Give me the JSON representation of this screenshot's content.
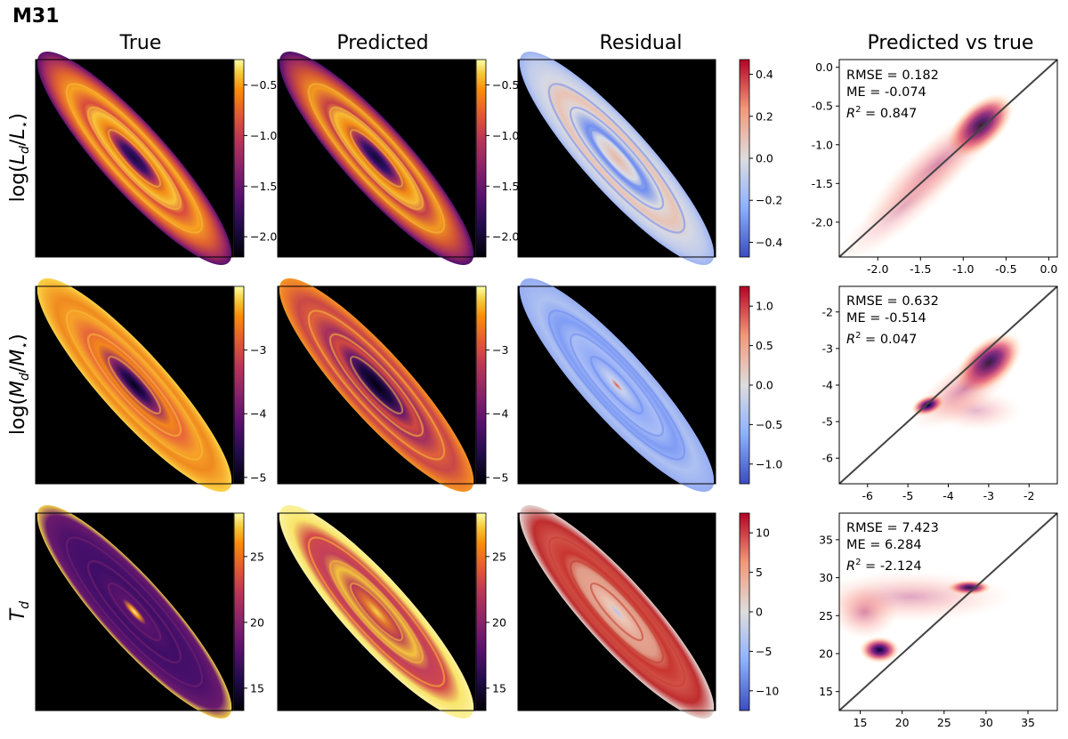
{
  "figure_title": "M31",
  "columns": [
    "True",
    "Predicted",
    "Residual",
    "Predicted vs true"
  ],
  "rows": [
    {
      "label": "log(L_d/L_⋆)",
      "label_parts": {
        "pre": "log(",
        "v1": "L",
        "s1": "d",
        "mid": "/",
        "v2": "L",
        "s2": "⋆",
        "post": ")"
      },
      "true_colorbar": {
        "ticks": [
          "−0.5",
          "−1.0",
          "−1.5",
          "−2.0"
        ],
        "range": [
          -2.2,
          -0.25
        ]
      },
      "pred_colorbar": {
        "ticks": [
          "−0.5",
          "−1.0",
          "−1.5",
          "−2.0"
        ],
        "range": [
          -2.2,
          -0.25
        ]
      },
      "resid_colorbar": {
        "ticks": [
          "0.4",
          "0.2",
          "0.0",
          "−0.2",
          "−0.4"
        ],
        "range": [
          -0.47,
          0.47
        ]
      }
    },
    {
      "label": "log(M_d/M_⋆)",
      "label_parts": {
        "pre": "log(",
        "v1": "M",
        "s1": "d",
        "mid": "/",
        "v2": "M",
        "s2": "⋆",
        "post": ")"
      },
      "true_colorbar": {
        "ticks": [
          "−3",
          "−4",
          "−5"
        ],
        "range": [
          -5.1,
          -2.0
        ]
      },
      "pred_colorbar": {
        "ticks": [
          "−3",
          "−4",
          "−5"
        ],
        "range": [
          -5.1,
          -2.0
        ]
      },
      "resid_colorbar": {
        "ticks": [
          "1.0",
          "0.5",
          "0.0",
          "−0.5",
          "−1.0"
        ],
        "range": [
          -1.25,
          1.25
        ]
      }
    },
    {
      "label": "T_d",
      "label_parts": {
        "pre": "",
        "v1": "T",
        "s1": "d",
        "mid": "",
        "v2": "",
        "s2": "",
        "post": ""
      },
      "true_colorbar": {
        "ticks": [
          "25",
          "20",
          "15"
        ],
        "range": [
          13.3,
          28.3
        ]
      },
      "pred_colorbar": {
        "ticks": [
          "25",
          "20",
          "15"
        ],
        "range": [
          13.3,
          28.3
        ]
      },
      "resid_colorbar": {
        "ticks": [
          "10",
          "5",
          "0",
          "−5",
          "−10"
        ],
        "range": [
          -12.5,
          12.5
        ]
      }
    }
  ],
  "chart_data": [
    {
      "type": "scatter",
      "subtype": "density (predicted vs true) with identity line",
      "title": "Predicted vs true",
      "stats": {
        "RMSE": "RMSE = 0.182",
        "ME": "ME = -0.074",
        "R2_value": " = 0.847"
      },
      "xlim": [
        -2.45,
        0.1
      ],
      "ylim": [
        -2.45,
        0.1
      ],
      "xticks": [
        "-2.0",
        "-1.5",
        "-1.0",
        "-0.5",
        "0.0"
      ],
      "xtick_values": [
        -2.0,
        -1.5,
        -1.0,
        -0.5,
        0.0
      ],
      "yticks": [
        "0.0",
        "-0.5",
        "-1.0",
        "-1.5",
        "-2.0"
      ],
      "ytick_values": [
        0.0,
        -0.5,
        -1.0,
        -1.5,
        -2.0
      ],
      "density_blobs": [
        {
          "x": -0.8,
          "y": -0.75,
          "sx": 0.22,
          "sy": 0.13,
          "rot": -43,
          "peak": 0.95
        },
        {
          "x": -1.3,
          "y": -1.25,
          "sx": 0.5,
          "sy": 0.14,
          "rot": -40,
          "peak": 0.45
        },
        {
          "x": -1.7,
          "y": -1.8,
          "sx": 0.45,
          "sy": 0.12,
          "rot": -40,
          "peak": 0.15
        }
      ]
    },
    {
      "type": "scatter",
      "subtype": "density (predicted vs true) with identity line",
      "title": "Predicted vs true",
      "stats": {
        "RMSE": "RMSE = 0.632",
        "ME": "ME = -0.514",
        "R2_value": " = 0.047"
      },
      "xlim": [
        -6.7,
        -1.3
      ],
      "ylim": [
        -6.7,
        -1.3
      ],
      "xticks": [
        "-6",
        "-5",
        "-4",
        "-3",
        "-2"
      ],
      "xtick_values": [
        -6,
        -5,
        -4,
        -3,
        -2
      ],
      "yticks": [
        "-2",
        "-3",
        "-4",
        "-5",
        "-6"
      ],
      "ytick_values": [
        -2,
        -3,
        -4,
        -5,
        -6
      ],
      "density_blobs": [
        {
          "x": -3.0,
          "y": -3.4,
          "sx": 0.45,
          "sy": 0.28,
          "rot": -40,
          "peak": 0.95
        },
        {
          "x": -3.6,
          "y": -4.1,
          "sx": 0.7,
          "sy": 0.3,
          "rot": -35,
          "peak": 0.45
        },
        {
          "x": -4.5,
          "y": -4.55,
          "sx": 0.2,
          "sy": 0.12,
          "rot": -20,
          "peak": 0.7
        },
        {
          "x": -3.3,
          "y": -4.7,
          "sx": 0.5,
          "sy": 0.25,
          "rot": 0,
          "peak": 0.15
        }
      ]
    },
    {
      "type": "scatter",
      "subtype": "density (predicted vs true) with identity line",
      "title": "Predicted vs true",
      "stats": {
        "RMSE": "RMSE = 7.423",
        "ME": "ME = 6.284",
        "R2_value": " = -2.124"
      },
      "xlim": [
        12.5,
        38.5
      ],
      "ylim": [
        12.5,
        38.5
      ],
      "xticks": [
        "15",
        "20",
        "25",
        "30",
        "35"
      ],
      "xtick_values": [
        15,
        20,
        25,
        30,
        35
      ],
      "yticks": [
        "35",
        "30",
        "25",
        "20",
        "15"
      ],
      "ytick_values": [
        35,
        30,
        25,
        20,
        15
      ],
      "density_blobs": [
        {
          "x": 17.3,
          "y": 20.5,
          "sx": 1.1,
          "sy": 0.8,
          "rot": 0,
          "peak": 1.0
        },
        {
          "x": 15.5,
          "y": 25.5,
          "sx": 1.8,
          "sy": 1.6,
          "rot": 0,
          "peak": 0.45
        },
        {
          "x": 28.0,
          "y": 28.7,
          "sx": 1.2,
          "sy": 0.45,
          "rot": 0,
          "peak": 0.9
        },
        {
          "x": 21.0,
          "y": 27.5,
          "sx": 5.5,
          "sy": 1.5,
          "rot": 0,
          "peak": 0.25
        }
      ]
    }
  ]
}
